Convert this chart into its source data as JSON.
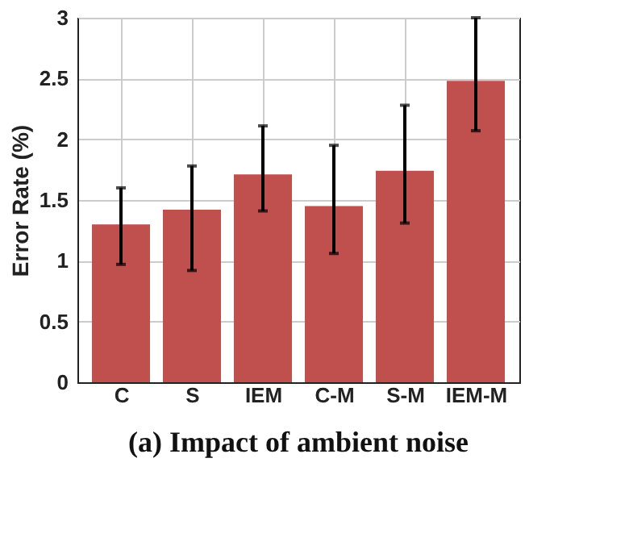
{
  "chart_data": {
    "type": "bar",
    "title": "(a) Impact of ambient noise",
    "ylabel": "Error Rate (%)",
    "categories": [
      "C",
      "S",
      "IEM",
      "C-M",
      "S-M",
      "IEM-M"
    ],
    "values": [
      1.3,
      1.42,
      1.71,
      1.45,
      1.74,
      2.48
    ],
    "errors": [
      [
        0.97,
        1.6
      ],
      [
        0.92,
        1.78
      ],
      [
        1.41,
        2.11
      ],
      [
        1.06,
        1.95
      ],
      [
        1.31,
        2.28
      ],
      [
        2.07,
        3.0
      ]
    ],
    "color": "#c0504d",
    "ylim": [
      0,
      3
    ],
    "yticks": [
      0,
      0.5,
      1,
      1.5,
      2,
      2.5,
      3
    ],
    "grid": true
  }
}
